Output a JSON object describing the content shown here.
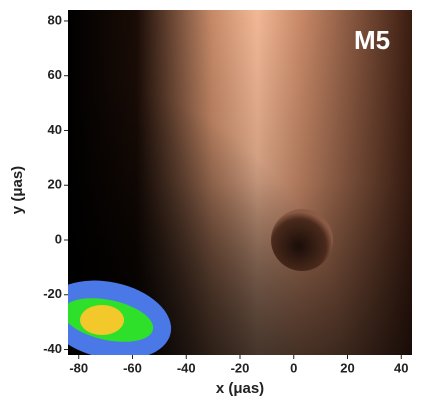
{
  "chart_data": {
    "type": "image",
    "title": "M5",
    "x_label": "x (μas)",
    "y_label": "y (μas)",
    "xlim": [
      -84,
      44
    ],
    "ylim": [
      -42,
      84
    ],
    "xticks": [
      -80,
      -60,
      -40,
      -20,
      0,
      20,
      40
    ],
    "yticks": [
      -40,
      -20,
      0,
      20,
      40,
      60,
      80
    ]
  }
}
